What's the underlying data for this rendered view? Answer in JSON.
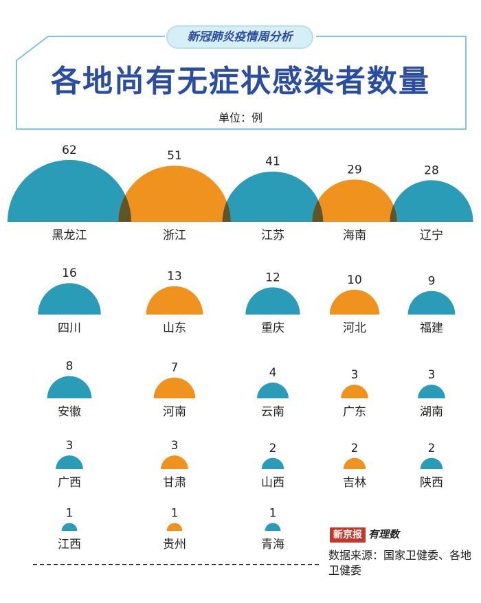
{
  "header": {
    "badge": "新冠肺炎疫情周分析",
    "title": "各地尚有无症状感染者数量",
    "unit": "单位：例"
  },
  "colors": {
    "teal": "#2a9cb8",
    "orange": "#f0931e",
    "overlap": "#5f5528",
    "frame": "#7ec7dc"
  },
  "chart_data": {
    "type": "bar",
    "categories": [
      "黑龙江",
      "浙江",
      "江苏",
      "海南",
      "辽宁",
      "四川",
      "山东",
      "重庆",
      "河北",
      "福建",
      "安徽",
      "河南",
      "云南",
      "广东",
      "湖南",
      "广西",
      "甘肃",
      "山西",
      "吉林",
      "陕西",
      "江西",
      "贵州",
      "青海"
    ],
    "values": [
      62,
      51,
      41,
      29,
      28,
      16,
      13,
      12,
      10,
      9,
      8,
      7,
      4,
      3,
      3,
      3,
      3,
      2,
      2,
      2,
      1,
      1,
      1
    ],
    "series": [
      {
        "values": [
          62,
          51,
          41,
          29,
          28,
          16,
          13,
          12,
          10,
          9,
          8,
          7,
          4,
          3,
          3,
          3,
          3,
          2,
          2,
          2,
          1,
          1,
          1
        ]
      }
    ],
    "color_cycle": [
      "teal",
      "orange",
      "teal",
      "orange",
      "teal"
    ],
    "title": "各地尚有无症状感染者数量",
    "ylabel": "单位：例"
  },
  "footer": {
    "logo_paper": "新京报",
    "logo_brand": "有理数",
    "source": "数据来源：国家卫健委、各地卫健委"
  }
}
